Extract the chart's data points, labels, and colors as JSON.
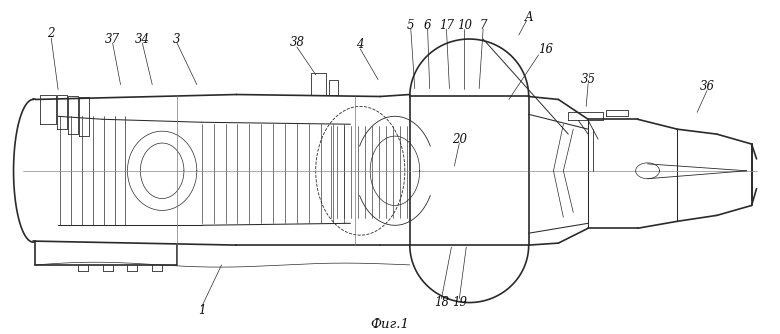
{
  "bg_color": "#ffffff",
  "line_color": "#2a2a2a",
  "label_color": "#111111",
  "fig_caption": "Фиг.1",
  "font_size": 8.5,
  "title_font_size": 9.5,
  "lw": 0.75
}
